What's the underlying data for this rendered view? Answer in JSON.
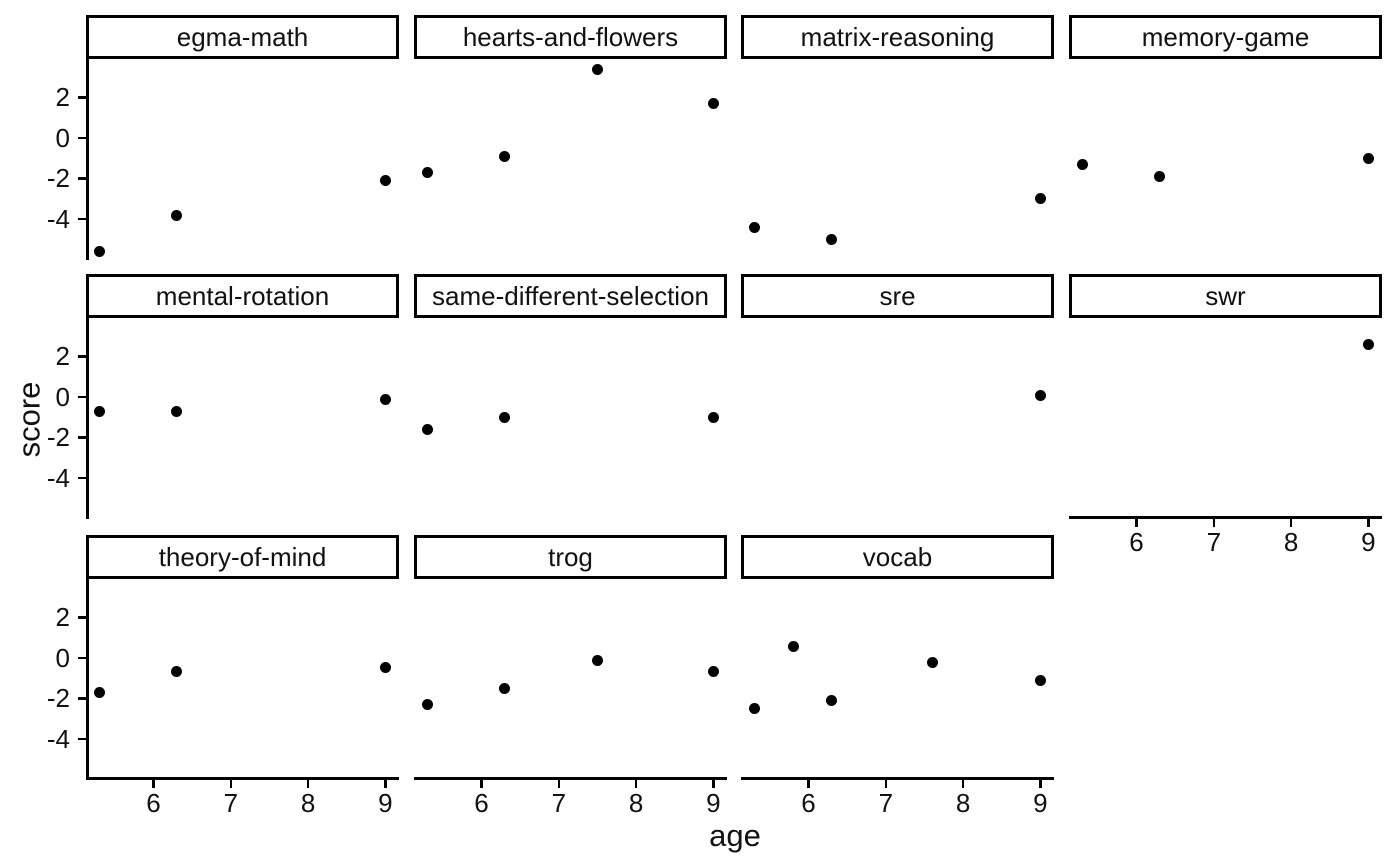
{
  "chart_data": {
    "type": "scatter",
    "title": "",
    "xlabel": "age",
    "ylabel": "score",
    "x_ticks": [
      6,
      7,
      8,
      9
    ],
    "y_ticks": [
      2,
      0,
      -2,
      -4
    ],
    "xlim": [
      5.1,
      9.2
    ],
    "ylim": [
      -6.0,
      3.9
    ],
    "grid": false,
    "legend": "none",
    "layout": "facet-wrap, 4 columns x 3 rows, shared axes, boxed strip titles",
    "point_color": "#000000",
    "panels": [
      {
        "title": "egma-math",
        "points": [
          {
            "age": 5.3,
            "score": -5.6
          },
          {
            "age": 6.3,
            "score": -3.8
          },
          {
            "age": 9.0,
            "score": -2.1
          }
        ]
      },
      {
        "title": "hearts-and-flowers",
        "points": [
          {
            "age": 5.3,
            "score": -1.7
          },
          {
            "age": 6.3,
            "score": -0.9
          },
          {
            "age": 7.5,
            "score": 3.4
          },
          {
            "age": 9.0,
            "score": 1.7
          }
        ]
      },
      {
        "title": "matrix-reasoning",
        "points": [
          {
            "age": 5.3,
            "score": -4.4
          },
          {
            "age": 6.3,
            "score": -5.0
          },
          {
            "age": 9.0,
            "score": -3.0
          }
        ]
      },
      {
        "title": "memory-game",
        "points": [
          {
            "age": 5.3,
            "score": -1.3
          },
          {
            "age": 6.3,
            "score": -1.9
          },
          {
            "age": 9.0,
            "score": -1.0
          }
        ]
      },
      {
        "title": "mental-rotation",
        "points": [
          {
            "age": 5.3,
            "score": -0.7
          },
          {
            "age": 6.3,
            "score": -0.7
          },
          {
            "age": 9.0,
            "score": -0.1
          }
        ]
      },
      {
        "title": "same-different-selection",
        "points": [
          {
            "age": 5.3,
            "score": -1.6
          },
          {
            "age": 6.3,
            "score": -1.0
          },
          {
            "age": 9.0,
            "score": -1.0
          }
        ]
      },
      {
        "title": "sre",
        "points": [
          {
            "age": 9.0,
            "score": 0.1
          }
        ]
      },
      {
        "title": "swr",
        "points": [
          {
            "age": 9.0,
            "score": 2.6
          }
        ]
      },
      {
        "title": "theory-of-mind",
        "points": [
          {
            "age": 5.3,
            "score": -1.7
          },
          {
            "age": 6.3,
            "score": -0.65
          },
          {
            "age": 9.0,
            "score": -0.45
          }
        ]
      },
      {
        "title": "trog",
        "points": [
          {
            "age": 5.3,
            "score": -2.3
          },
          {
            "age": 6.3,
            "score": -1.5
          },
          {
            "age": 7.5,
            "score": -0.1
          },
          {
            "age": 9.0,
            "score": -0.65
          }
        ]
      },
      {
        "title": "vocab",
        "points": [
          {
            "age": 5.3,
            "score": -2.5
          },
          {
            "age": 5.8,
            "score": 0.6
          },
          {
            "age": 6.3,
            "score": -2.1
          },
          {
            "age": 7.6,
            "score": -0.2
          },
          {
            "age": 9.0,
            "score": -1.1
          }
        ]
      }
    ]
  }
}
